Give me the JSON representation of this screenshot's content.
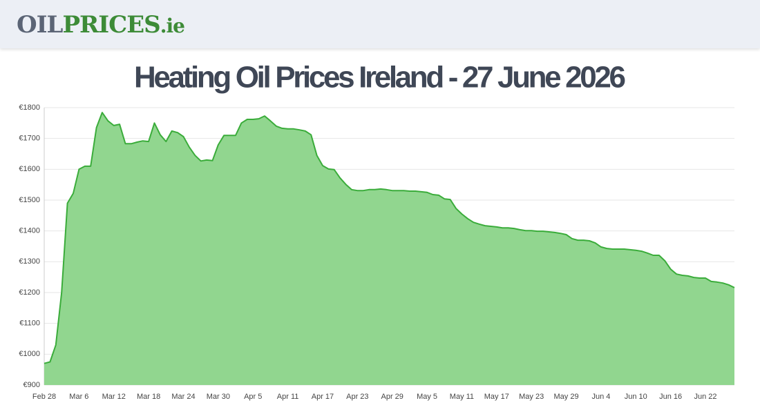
{
  "header": {
    "logo_parts": [
      "OIL",
      "PRICES",
      ".ie"
    ]
  },
  "chart_data": {
    "type": "area",
    "title": "Heating Oil Prices Ireland - 27 June 2026",
    "categories": [
      "Feb 28",
      null,
      null,
      null,
      null,
      null,
      "Mar 6",
      null,
      null,
      null,
      null,
      null,
      "Mar 12",
      null,
      null,
      null,
      null,
      null,
      "Mar 18",
      null,
      null,
      null,
      null,
      null,
      "Mar 24",
      null,
      null,
      null,
      null,
      null,
      "Mar 30",
      null,
      null,
      null,
      null,
      null,
      "Apr 5",
      null,
      null,
      null,
      null,
      null,
      "Apr 11",
      null,
      null,
      null,
      null,
      null,
      "Apr 17",
      null,
      null,
      null,
      null,
      null,
      "Apr 23",
      null,
      null,
      null,
      null,
      null,
      "Apr 29",
      null,
      null,
      null,
      null,
      null,
      "May 5",
      null,
      null,
      null,
      null,
      null,
      "May 11",
      null,
      null,
      null,
      null,
      null,
      "May 17",
      null,
      null,
      null,
      null,
      null,
      "May 23",
      null,
      null,
      null,
      null,
      null,
      "May 29",
      null,
      null,
      null,
      null,
      null,
      "Jun 4",
      null,
      null,
      null,
      null,
      null,
      "Jun 10",
      null,
      null,
      null,
      null,
      null,
      "Jun 16",
      null,
      null,
      null,
      null,
      null,
      "Jun 22",
      null,
      null,
      null,
      null,
      null
    ],
    "values": [
      970,
      975,
      1030,
      1200,
      1490,
      1522,
      1600,
      1610,
      1610,
      1735,
      1784,
      1757,
      1742,
      1746,
      1683,
      1683,
      1688,
      1692,
      1690,
      1750,
      1712,
      1690,
      1724,
      1719,
      1706,
      1672,
      1645,
      1627,
      1630,
      1628,
      1679,
      1710,
      1710,
      1710,
      1750,
      1762,
      1762,
      1764,
      1773,
      1757,
      1740,
      1733,
      1731,
      1731,
      1728,
      1724,
      1712,
      1645,
      1612,
      1601,
      1599,
      1572,
      1551,
      1534,
      1531,
      1531,
      1534,
      1534,
      1536,
      1534,
      1531,
      1531,
      1531,
      1529,
      1529,
      1527,
      1525,
      1518,
      1516,
      1504,
      1502,
      1473,
      1455,
      1440,
      1428,
      1422,
      1417,
      1415,
      1413,
      1410,
      1410,
      1408,
      1404,
      1401,
      1401,
      1399,
      1399,
      1397,
      1395,
      1392,
      1388,
      1375,
      1370,
      1370,
      1368,
      1361,
      1348,
      1343,
      1341,
      1341,
      1341,
      1339,
      1337,
      1334,
      1328,
      1321,
      1321,
      1303,
      1276,
      1260,
      1256,
      1254,
      1249,
      1247,
      1247,
      1236,
      1234,
      1231,
      1225,
      1216
    ],
    "color": "#3aac3a",
    "fill": "#91d68f",
    "ylim": [
      900,
      1800
    ],
    "yticks": [
      {
        "value": 900,
        "label": "€900"
      },
      {
        "value": 1000,
        "label": "€1000"
      },
      {
        "value": 1100,
        "label": "€1100"
      },
      {
        "value": 1200,
        "label": "€1200"
      },
      {
        "value": 1300,
        "label": "€1300"
      },
      {
        "value": 1400,
        "label": "€1400"
      },
      {
        "value": 1500,
        "label": "€1500"
      },
      {
        "value": 1600,
        "label": "€1600"
      },
      {
        "value": 1700,
        "label": "€1700"
      },
      {
        "value": 1800,
        "label": "€1800"
      }
    ],
    "grid": true
  }
}
